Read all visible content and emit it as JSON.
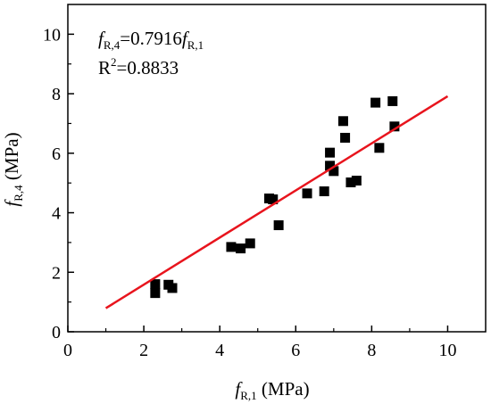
{
  "chart_data": {
    "type": "scatter",
    "xlim": [
      0,
      11
    ],
    "ylim": [
      0,
      11
    ],
    "x_ticks": [
      0,
      2,
      4,
      6,
      8,
      10
    ],
    "y_ticks": [
      0,
      2,
      4,
      6,
      8,
      10
    ],
    "x_tick_labels": [
      "0",
      "2",
      "4",
      "6",
      "8",
      "10"
    ],
    "y_tick_labels": [
      "0",
      "2",
      "4",
      "6",
      "8",
      "10"
    ],
    "xlabel": {
      "main": "f",
      "sub": "R,1",
      "unit": " (MPa)"
    },
    "ylabel": {
      "main": "f",
      "sub": "R,4",
      "unit": " (MPa)"
    },
    "grid": false,
    "series": [
      {
        "type": "scatter",
        "marker": "square",
        "color": "#000000",
        "points": [
          [
            2.3,
            1.6
          ],
          [
            2.3,
            1.3
          ],
          [
            2.65,
            1.58
          ],
          [
            2.75,
            1.47
          ],
          [
            4.3,
            2.85
          ],
          [
            4.55,
            2.8
          ],
          [
            4.8,
            2.97
          ],
          [
            5.3,
            4.48
          ],
          [
            5.4,
            4.45
          ],
          [
            5.55,
            3.58
          ],
          [
            6.3,
            4.65
          ],
          [
            6.75,
            4.72
          ],
          [
            6.9,
            6.02
          ],
          [
            6.9,
            5.58
          ],
          [
            7.0,
            5.4
          ],
          [
            7.25,
            7.08
          ],
          [
            7.3,
            6.52
          ],
          [
            7.45,
            5.02
          ],
          [
            7.6,
            5.08
          ],
          [
            8.1,
            7.7
          ],
          [
            8.2,
            6.18
          ],
          [
            8.55,
            7.75
          ],
          [
            8.6,
            6.9
          ]
        ]
      },
      {
        "type": "line",
        "color": "#e8141d",
        "points": [
          [
            1,
            0.7916
          ],
          [
            10,
            7.916
          ]
        ]
      }
    ],
    "annotations": {
      "eq": {
        "f1": "f",
        "sub1": "R,4",
        "mid": "=0.7916",
        "f2": "f",
        "sub2": "R,1"
      },
      "r2": {
        "base": "R",
        "sup": "2",
        "value": "=0.8833"
      }
    }
  }
}
